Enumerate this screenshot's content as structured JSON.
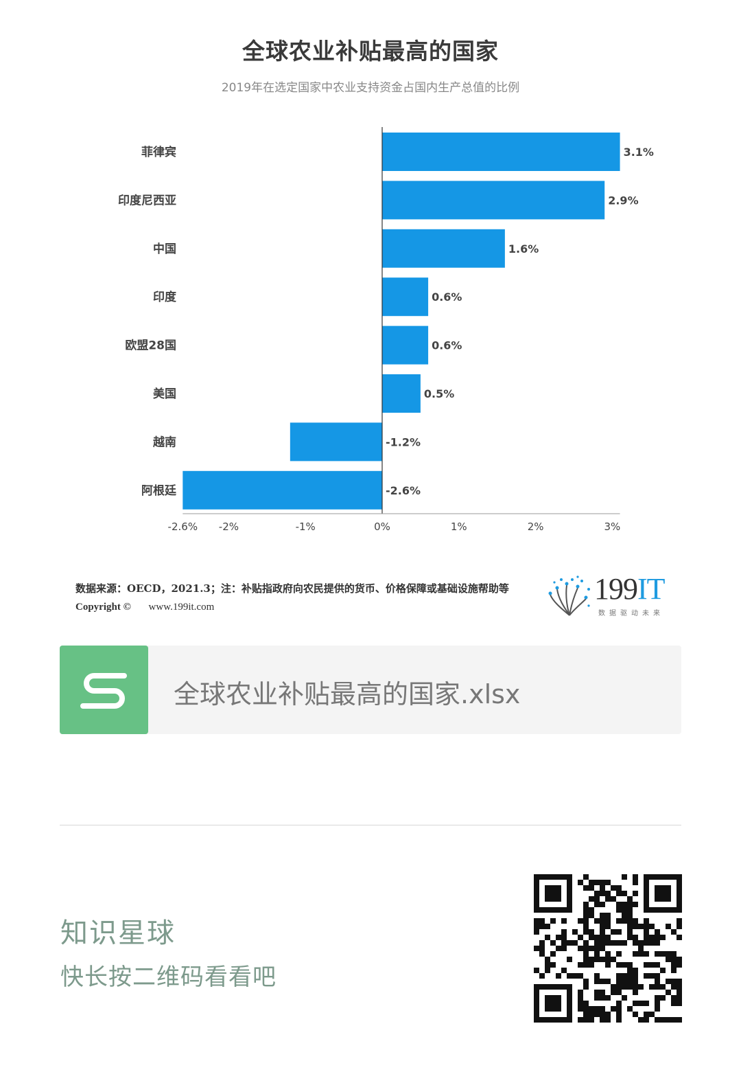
{
  "chart_data": {
    "type": "bar",
    "orientation": "horizontal",
    "title": "全球农业补贴最高的国家",
    "subtitle": "2019年在选定国家中农业支持资金占国内生产总值的比例",
    "categories": [
      "菲律宾",
      "印度尼西亚",
      "中国",
      "印度",
      "欧盟28国",
      "美国",
      "越南",
      "阿根廷"
    ],
    "values": [
      3.1,
      2.9,
      1.6,
      0.6,
      0.6,
      0.5,
      -1.2,
      -2.6
    ],
    "value_labels": [
      "3.1%",
      "2.9%",
      "1.6%",
      "0.6%",
      "0.6%",
      "0.5%",
      "-1.2%",
      "-2.6%"
    ],
    "xlim": [
      -2.6,
      3.1
    ],
    "x_ticks": [
      -2.6,
      -2,
      -1,
      0,
      1,
      2,
      3
    ],
    "x_tick_labels": [
      "-2.6%",
      "-2%",
      "-1%",
      "0%",
      "1%",
      "2%",
      "3%"
    ],
    "grid": false,
    "bar_color": "#1597e5"
  },
  "footer": {
    "source": "数据来源：OECD，2021.3；注：补贴指政府向农民提供的货币、价格保障或基础设施帮助等",
    "copyright": "Copyright ©",
    "website": "www.199it.com",
    "logo_number": "199",
    "logo_suffix": "IT",
    "logo_tagline": "数据驱动未来"
  },
  "file_card": {
    "icon": "spreadsheet-s-icon",
    "icon_letter": "S",
    "file_name": "全球农业补贴最高的国家.xlsx",
    "icon_color": "#67c185"
  },
  "promo": {
    "title": "知识星球",
    "subtitle": "快长按二维码看看吧",
    "qr": "qr-code-icon"
  }
}
